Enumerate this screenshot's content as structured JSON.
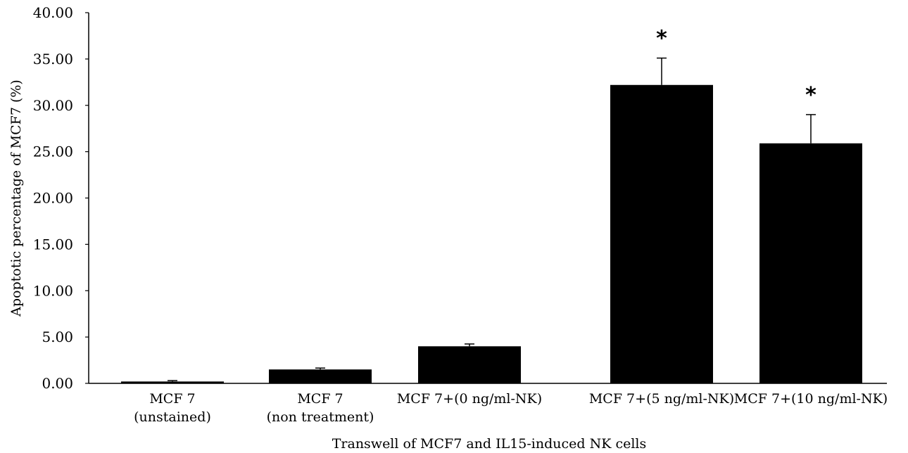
{
  "chart_data": {
    "type": "bar",
    "title": "",
    "xlabel": "Transwell of MCF7 and IL15-induced NK cells",
    "ylabel": "Apoptotic percentage of MCF7 (%)",
    "ylim": [
      0,
      40
    ],
    "yticks": [
      "0.00",
      "5.00",
      "10.00",
      "15.00",
      "20.00",
      "25.00",
      "30.00",
      "35.00",
      "40.00"
    ],
    "categories": [
      [
        "MCF 7",
        "(unstained)"
      ],
      [
        "MCF 7",
        "(non treatment)"
      ],
      [
        "MCF 7+(0 ng/ml-NK)"
      ],
      [
        "MCF 7+(5 ng/ml-NK)"
      ],
      [
        "MCF 7+(10 ng/ml-NK)"
      ]
    ],
    "values": [
      0.2,
      1.5,
      4.0,
      32.2,
      25.9
    ],
    "errors": [
      0.1,
      0.15,
      0.25,
      2.9,
      3.1
    ],
    "annotations": [
      "",
      "",
      "",
      "*",
      "*"
    ],
    "bar_color": "#000000",
    "grid": false,
    "legend": "none"
  }
}
